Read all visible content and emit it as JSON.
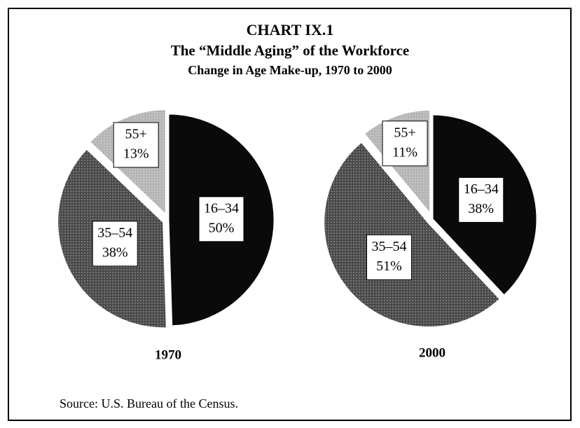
{
  "header": {
    "title": "CHART IX.1",
    "subtitle": "The “Middle Aging” of the Workforce",
    "subsubtitle": "Change in Age Make-up, 1970 to 2000"
  },
  "chart_data": [
    {
      "type": "pie",
      "title": "1970",
      "categories": [
        "16–34",
        "35–54",
        "55+"
      ],
      "values": [
        50,
        38,
        13
      ],
      "value_labels": [
        "50%",
        "38%",
        "13%"
      ],
      "colors": [
        "#0a0a0a",
        "#4a4a4a",
        "#b5b5b5"
      ]
    },
    {
      "type": "pie",
      "title": "2000",
      "categories": [
        "16–34",
        "35–54",
        "55+"
      ],
      "values": [
        38,
        51,
        11
      ],
      "value_labels": [
        "38%",
        "51%",
        "11%"
      ],
      "colors": [
        "#0a0a0a",
        "#4a4a4a",
        "#b5b5b5"
      ]
    }
  ],
  "source": "Source: U.S. Bureau of the Census."
}
